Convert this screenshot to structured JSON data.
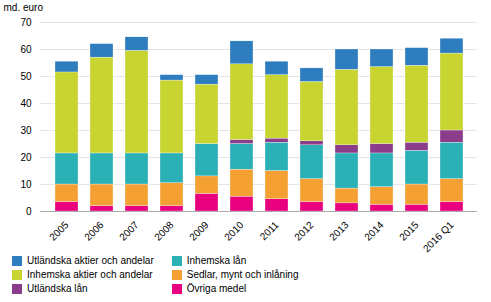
{
  "chart_data": {
    "type": "bar",
    "stacked": true,
    "categories": [
      "2005",
      "2006",
      "2007",
      "2008",
      "2009",
      "2010",
      "2011",
      "2012",
      "2013",
      "2014",
      "2015",
      "2016 Q1"
    ],
    "series": [
      {
        "name": "Övriga medel",
        "color": "#e8007f",
        "values": [
          3.5,
          2.0,
          2.0,
          2.0,
          6.5,
          5.5,
          4.5,
          3.5,
          3.0,
          2.5,
          2.5,
          3.5
        ]
      },
      {
        "name": "Sedlar, mynt och inlåning",
        "color": "#f4a033",
        "values": [
          6.5,
          8.0,
          8.0,
          8.5,
          6.5,
          10.0,
          10.5,
          8.5,
          5.5,
          6.5,
          7.5,
          8.5
        ]
      },
      {
        "name": "Inhemska lån",
        "color": "#2ab0b5",
        "values": [
          11.5,
          11.5,
          11.5,
          11.0,
          12.0,
          9.5,
          10.5,
          12.5,
          13.0,
          12.5,
          12.5,
          13.5
        ]
      },
      {
        "name": "Utländska lån",
        "color": "#8b3d8b",
        "values": [
          0.0,
          0.0,
          0.0,
          0.0,
          0.0,
          1.5,
          1.5,
          1.5,
          3.0,
          3.5,
          3.0,
          4.5
        ]
      },
      {
        "name": "Inhemska aktier och andelar",
        "color": "#c8d42f",
        "values": [
          30.0,
          35.5,
          38.0,
          27.0,
          22.0,
          28.0,
          23.5,
          22.0,
          28.0,
          28.5,
          28.5,
          28.5
        ]
      },
      {
        "name": "Utländska aktier och andelar",
        "color": "#2e7dbf",
        "values": [
          4.0,
          5.0,
          5.0,
          2.0,
          3.5,
          8.5,
          5.0,
          5.0,
          7.5,
          6.5,
          6.5,
          5.5
        ]
      }
    ],
    "ylabel": "md. euro",
    "ylim": [
      0,
      70
    ],
    "yticks": [
      0,
      10,
      20,
      30,
      40,
      50,
      60,
      70
    ],
    "grid": true,
    "legend": "bottom"
  }
}
